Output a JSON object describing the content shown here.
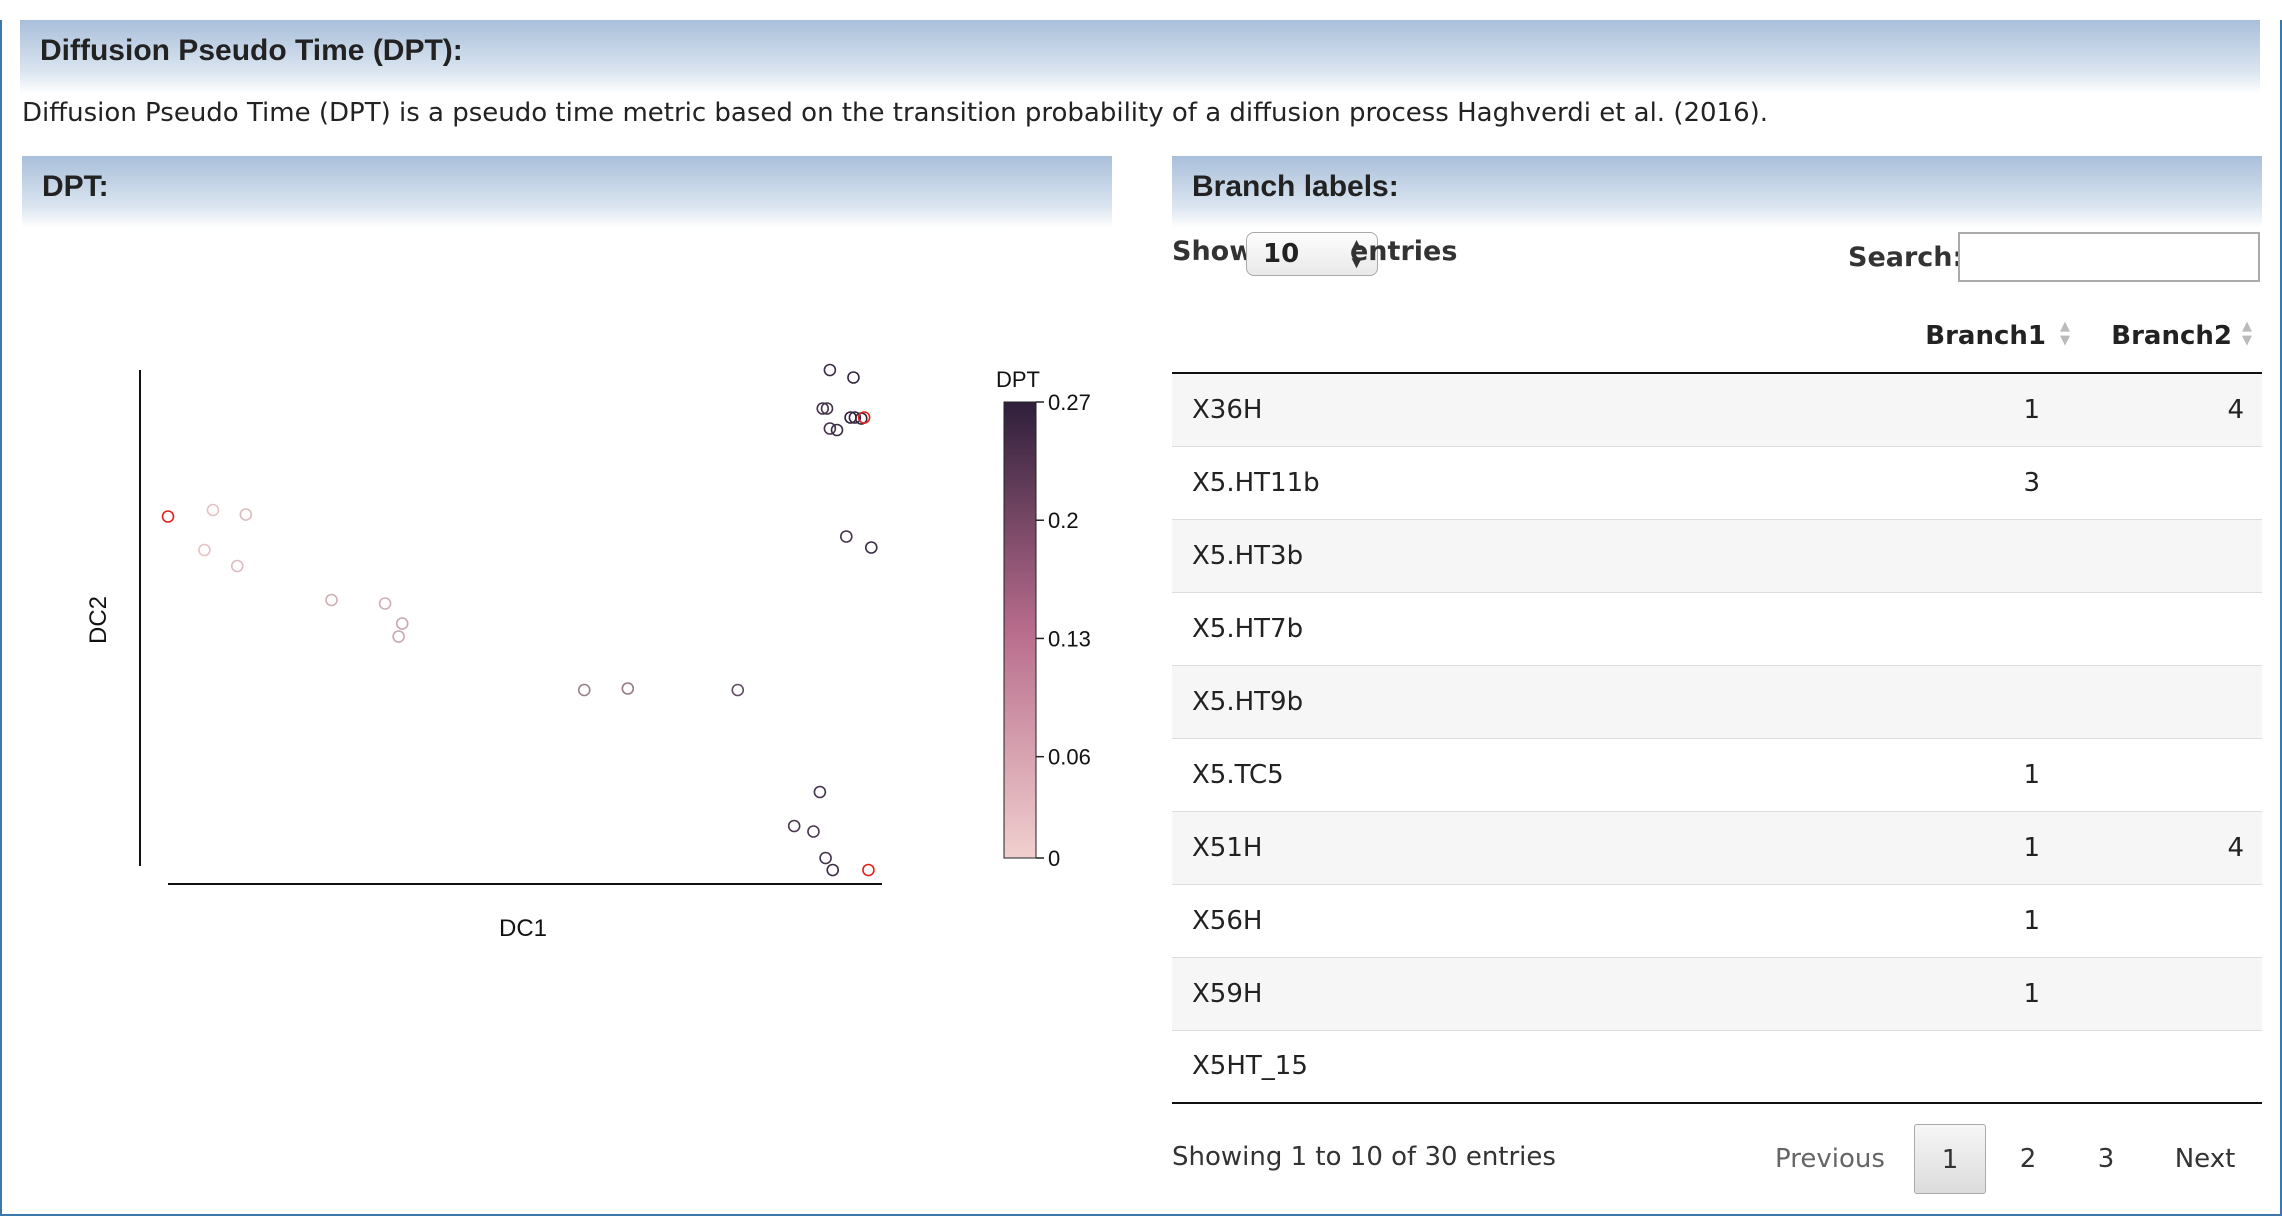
{
  "header": {
    "title": "Diffusion Pseudo Time (DPT):"
  },
  "description": "Diffusion Pseudo Time (DPT) is a pseudo time metric based on the transition probability of a diffusion process Haghverdi et al. (2016).",
  "dpt_panel": {
    "title": "DPT:"
  },
  "branch_panel": {
    "title": "Branch labels:",
    "show_label": "Show",
    "entries_value": "10",
    "entries_label": "entries",
    "search_label": "Search:",
    "search_value": "",
    "columns": [
      "",
      "Branch1",
      "Branch2"
    ],
    "rows": [
      [
        "X36H",
        "1",
        "4"
      ],
      [
        "X5.HT11b",
        "3",
        ""
      ],
      [
        "X5.HT3b",
        "",
        ""
      ],
      [
        "X5.HT7b",
        "",
        ""
      ],
      [
        "X5.HT9b",
        "",
        ""
      ],
      [
        "X5.TC5",
        "1",
        ""
      ],
      [
        "X51H",
        "1",
        "4"
      ],
      [
        "X56H",
        "1",
        ""
      ],
      [
        "X59H",
        "1",
        ""
      ],
      [
        "X5HT_15",
        "",
        ""
      ]
    ],
    "info": "Showing 1 to 10 of 30 entries",
    "pagination": {
      "previous": "Previous",
      "pages": [
        "1",
        "2",
        "3"
      ],
      "current": "1",
      "next": "Next"
    }
  },
  "chart_data": {
    "type": "scatter",
    "xlabel": "DC1",
    "ylabel": "DC2",
    "xlim": [
      0,
      100
    ],
    "ylim": [
      0,
      100
    ],
    "color_legend": {
      "title": "DPT",
      "ticks": [
        0,
        0.06,
        0.13,
        0.2,
        0.27
      ],
      "tick_labels": [
        "0",
        "0.06",
        "0.13",
        "0.2",
        "0.27"
      ],
      "low_color": "#f1d0cf",
      "high_color": "#2e1f3a"
    },
    "root_color": "#e0201b",
    "points": [
      {
        "x": 0.0,
        "y": 70.7,
        "dpt": 0.0,
        "root": true
      },
      {
        "x": 6.3,
        "y": 72.0,
        "dpt": 0.02
      },
      {
        "x": 10.9,
        "y": 71.1,
        "dpt": 0.03
      },
      {
        "x": 5.1,
        "y": 64.0,
        "dpt": 0.02
      },
      {
        "x": 9.7,
        "y": 60.8,
        "dpt": 0.03
      },
      {
        "x": 22.9,
        "y": 54.0,
        "dpt": 0.05
      },
      {
        "x": 30.4,
        "y": 53.3,
        "dpt": 0.05
      },
      {
        "x": 32.8,
        "y": 49.3,
        "dpt": 0.06
      },
      {
        "x": 32.3,
        "y": 46.7,
        "dpt": 0.06
      },
      {
        "x": 58.3,
        "y": 36.0,
        "dpt": 0.12
      },
      {
        "x": 64.4,
        "y": 36.3,
        "dpt": 0.13
      },
      {
        "x": 79.8,
        "y": 36.0,
        "dpt": 0.2
      },
      {
        "x": 92.7,
        "y": 100.0,
        "dpt": 0.25
      },
      {
        "x": 96.0,
        "y": 98.5,
        "dpt": 0.26
      },
      {
        "x": 91.7,
        "y": 92.3,
        "dpt": 0.24
      },
      {
        "x": 92.3,
        "y": 92.3,
        "dpt": 0.24
      },
      {
        "x": 92.7,
        "y": 88.3,
        "dpt": 0.24
      },
      {
        "x": 93.7,
        "y": 88.0,
        "dpt": 0.25
      },
      {
        "x": 95.6,
        "y": 90.5,
        "dpt": 0.27
      },
      {
        "x": 96.2,
        "y": 90.5,
        "dpt": 0.26
      },
      {
        "x": 97.1,
        "y": 90.3,
        "dpt": 0.26
      },
      {
        "x": 97.5,
        "y": 90.5,
        "dpt": 0.0,
        "root": true
      },
      {
        "x": 95.0,
        "y": 66.7,
        "dpt": 0.24
      },
      {
        "x": 98.5,
        "y": 64.5,
        "dpt": 0.25
      },
      {
        "x": 91.3,
        "y": 15.6,
        "dpt": 0.24
      },
      {
        "x": 87.7,
        "y": 8.8,
        "dpt": 0.23
      },
      {
        "x": 90.4,
        "y": 7.7,
        "dpt": 0.23
      },
      {
        "x": 92.1,
        "y": 2.4,
        "dpt": 0.24
      },
      {
        "x": 93.1,
        "y": 0.0,
        "dpt": 0.25
      },
      {
        "x": 98.1,
        "y": 0.0,
        "dpt": 0.0,
        "root": true
      }
    ]
  }
}
